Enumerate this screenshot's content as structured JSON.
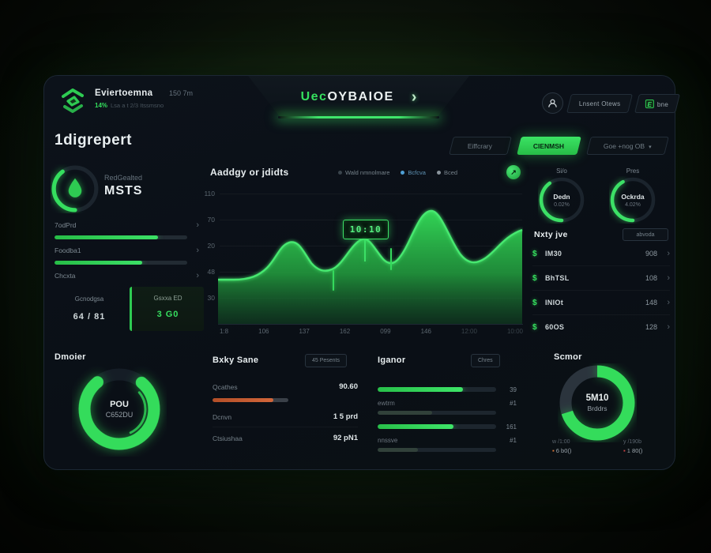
{
  "theme": {
    "accent": "#35df5e",
    "accent_bright": "#4ef07a",
    "card_bg": "#0a0f16",
    "page_bg": "#101a0d",
    "orange": "#c85a30",
    "blue": "#4f9fd4",
    "dim_text": "#66727c"
  },
  "icons": {
    "chevron_right": "›",
    "caret_down": "▾",
    "token": "$",
    "arrow_up": "↗"
  },
  "header": {
    "logo_title": "Eviertoemna",
    "logo_meta": "150 7m",
    "logo_sub_pct": "14%",
    "logo_sub_text": "Lsa a t 2/3 Itssmsno",
    "banner_title_accent": "Uec",
    "banner_title_rest": "OYBAIOE",
    "account_button": "Lnsent Otews",
    "new_button_icon": "E",
    "new_button_label": "bne"
  },
  "filters": {
    "btn1": "Eiffcrary",
    "btn2": "CIENMSH",
    "btn3": "Goe +nog OB"
  },
  "sidebar": {
    "heading": "1digrepert",
    "gauge_label": "RedGealted",
    "gauge_value": "MSTS",
    "progress": [
      {
        "label": "7odPrd",
        "pct": 78
      },
      {
        "label": "Foodba1",
        "pct": 66
      },
      {
        "label": "Chcxta"
      }
    ],
    "stat_left": {
      "label": "Gcnodgsa",
      "value": "64 / 81"
    },
    "stat_right": {
      "label": "Gsxxa ED",
      "value": "3 G0"
    }
  },
  "chart": {
    "title": "Aaddgy or jdidts",
    "legend": [
      {
        "label": "Wald nmnolmare",
        "color": "#6b7780"
      },
      {
        "label": "Bcfcva",
        "color": "#4f9fd4"
      },
      {
        "label": "Bced",
        "color": "#8a949c"
      }
    ],
    "tooltip": "10:10",
    "y_ticks": [
      "110",
      "70",
      "20",
      "48",
      "30"
    ],
    "x_ticks": [
      "1:8",
      "106",
      "137",
      "162",
      "099",
      "146",
      "12:00",
      "10:00"
    ]
  },
  "chart_data": [
    {
      "type": "area",
      "title": "Aaddgy or jdidts",
      "x": [
        "1:8",
        "106",
        "137",
        "162",
        "099",
        "146",
        "12:00",
        "10:00"
      ],
      "values": [
        36,
        38,
        68,
        43,
        71,
        96,
        52,
        79
      ],
      "ylim": [
        0,
        110
      ],
      "y_ticks": [
        "110",
        "70",
        "20",
        "48",
        "30"
      ],
      "legend": [
        "Wald nmnolmare",
        "Bcfcva",
        "Bced"
      ],
      "annotation": "10:10",
      "grid": true,
      "legend_position": "top-right"
    },
    {
      "type": "pie",
      "title": "Dmoier",
      "center_label": "POU C652DU",
      "values": [
        78,
        22
      ],
      "inner_arc_pct": 29
    },
    {
      "type": "pie",
      "title": "Scmor",
      "center_label": "5M10 Brddrs",
      "values": [
        70,
        30
      ]
    },
    {
      "type": "bar",
      "title": "Iganor",
      "values": [
        72,
        46,
        64,
        34
      ]
    }
  ],
  "right_panel": {
    "gauges": [
      {
        "top_label": "Si/o",
        "name": "Dedn",
        "value": "0.02%",
        "pct": 40
      },
      {
        "top_label": "Pres",
        "name": "Ockrda",
        "value": "4.02%",
        "pct": 42
      }
    ],
    "list_title": "Nxty jve",
    "list_button": "abvoda",
    "rows": [
      {
        "label": "IM30",
        "value": "908"
      },
      {
        "label": "BhTSL",
        "value": "108"
      },
      {
        "label": "INIOt",
        "value": "148"
      },
      {
        "label": "60OS",
        "value": "128"
      }
    ]
  },
  "bottom": {
    "donut_left": {
      "title": "Dmoier",
      "center_top": "POU",
      "center_bottom": "C652DU",
      "pct": 78
    },
    "stats": {
      "title": "Bxky Sane",
      "badge": "45 Pesents",
      "bar_pct": 80,
      "rows": [
        {
          "label": "Qcathes",
          "value": "90.60"
        },
        {
          "label": "Dcnvn",
          "value": "1 5 prd"
        },
        {
          "label": "Ctsiushaa",
          "value": "92 pN1"
        }
      ]
    },
    "bars": {
      "title": "Iganor",
      "badge": "Chres",
      "rows": [
        {
          "pct": 72,
          "value": "39"
        },
        {
          "label": "ewtrm",
          "value": "#1",
          "pct": 46
        },
        {
          "pct": 64,
          "value": "161"
        },
        {
          "label": "nnssve",
          "value": "#1",
          "pct": 34
        }
      ]
    },
    "donut_right": {
      "title": "Scmor",
      "center_top": "5M10",
      "center_bottom": "Brddrs",
      "pct": 70,
      "legend": [
        {
          "line1": "w /1:00",
          "line2": "6 b0()"
        },
        {
          "line1": "y /190b",
          "line2": "1 80()"
        }
      ]
    }
  }
}
